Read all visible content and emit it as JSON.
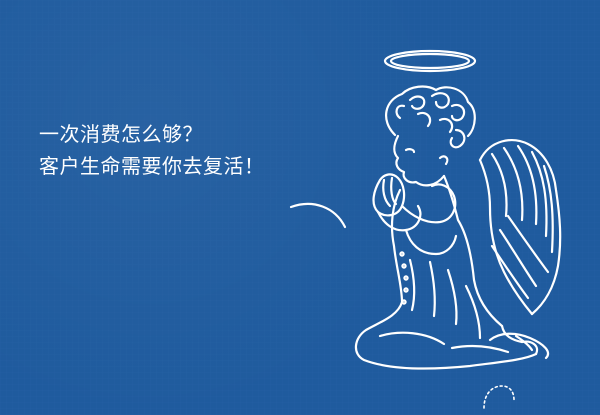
{
  "banner": {
    "line1": "一次消费怎么够？",
    "line2": "客户生命需要你去复活！"
  },
  "colors": {
    "background": "#1f5b9e",
    "text": "#ffffff",
    "illustration_stroke": "#ffffff"
  },
  "icons": {
    "illustration": "praying-angel-illustration",
    "speech_mark": "speech-curve-mark",
    "loader": "loading-spinner-icon"
  }
}
